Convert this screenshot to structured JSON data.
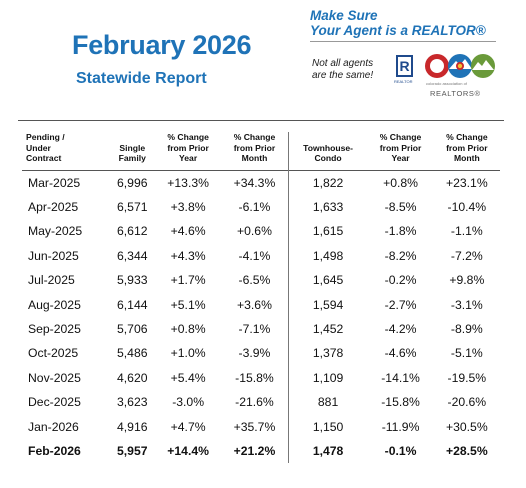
{
  "header": {
    "title": "February 2026",
    "subtitle": "Statewide Report"
  },
  "promo": {
    "tagline_line1": "Make Sure",
    "tagline_line2": "Your Agent is a REALTOR®",
    "note_line1": "Not all agents",
    "note_line2": "are the same!",
    "realtor_mark_letter": "R",
    "realtor_mark_label": "REALTOR",
    "association_label": "REALTORS®"
  },
  "colors": {
    "title_blue": "#1f73b7",
    "logo_red": "#c8282b",
    "logo_blue": "#1f73b7",
    "logo_green": "#6a9a3a",
    "logo_yellow": "#f2c230"
  },
  "table": {
    "headers": [
      [
        "Pending /",
        "Under",
        "Contract"
      ],
      [
        "Single",
        "Family"
      ],
      [
        "% Change",
        "from Prior",
        "Year"
      ],
      [
        "% Change",
        "from Prior",
        "Month"
      ],
      [
        "Townhouse-",
        "Condo"
      ],
      [
        "% Change",
        "from Prior",
        "Year"
      ],
      [
        "% Change",
        "from Prior",
        "Month"
      ]
    ],
    "rows": [
      [
        "Mar-2025",
        "6,996",
        "+13.3%",
        "+34.3%",
        "1,822",
        "+0.8%",
        "+23.1%"
      ],
      [
        "Apr-2025",
        "6,571",
        "+3.8%",
        "-6.1%",
        "1,633",
        "-8.5%",
        "-10.4%"
      ],
      [
        "May-2025",
        "6,612",
        "+4.6%",
        "+0.6%",
        "1,615",
        "-1.8%",
        "-1.1%"
      ],
      [
        "Jun-2025",
        "6,344",
        "+4.3%",
        "-4.1%",
        "1,498",
        "-8.2%",
        "-7.2%"
      ],
      [
        "Jul-2025",
        "5,933",
        "+1.7%",
        "-6.5%",
        "1,645",
        "-0.2%",
        "+9.8%"
      ],
      [
        "Aug-2025",
        "6,144",
        "+5.1%",
        "+3.6%",
        "1,594",
        "-2.7%",
        "-3.1%"
      ],
      [
        "Sep-2025",
        "5,706",
        "+0.8%",
        "-7.1%",
        "1,452",
        "-4.2%",
        "-8.9%"
      ],
      [
        "Oct-2025",
        "5,486",
        "+1.0%",
        "-3.9%",
        "1,378",
        "-4.6%",
        "-5.1%"
      ],
      [
        "Nov-2025",
        "4,620",
        "+5.4%",
        "-15.8%",
        "1,109",
        "-14.1%",
        "-19.5%"
      ],
      [
        "Dec-2025",
        "3,623",
        "-3.0%",
        "-21.6%",
        "881",
        "-15.8%",
        "-20.6%"
      ],
      [
        "Jan-2026",
        "4,916",
        "+4.7%",
        "+35.7%",
        "1,150",
        "-11.9%",
        "+30.5%"
      ],
      [
        "Feb-2026",
        "5,957",
        "+14.4%",
        "+21.2%",
        "1,478",
        "-0.1%",
        "+28.5%"
      ]
    ]
  }
}
